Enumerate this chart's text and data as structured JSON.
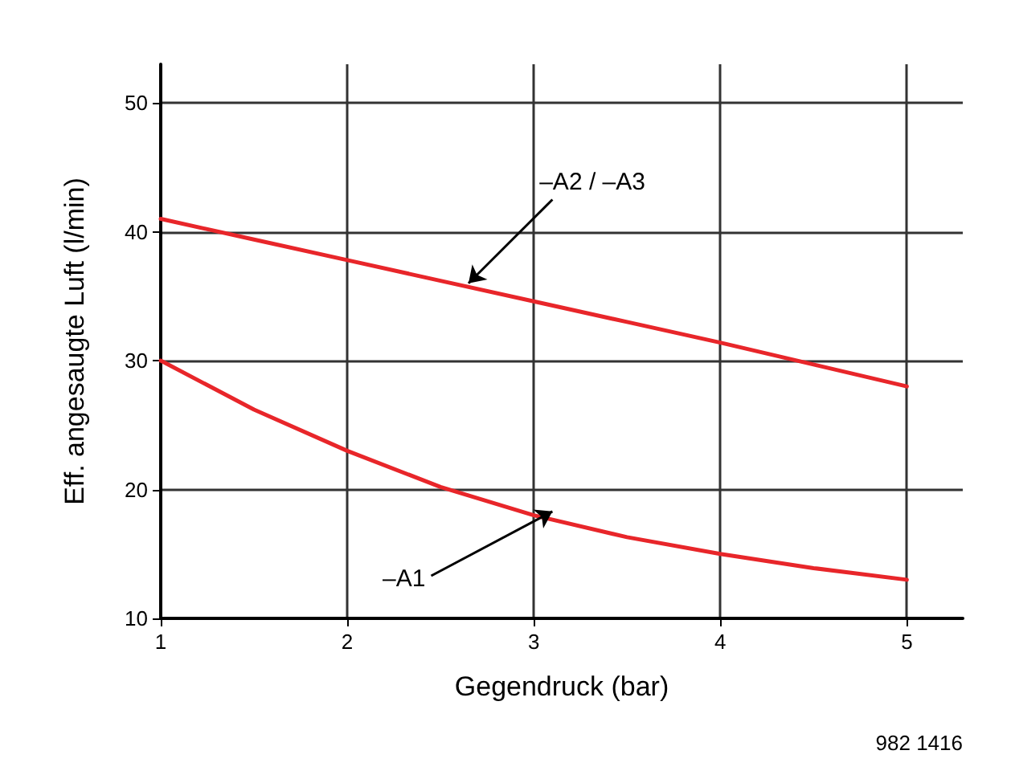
{
  "chart_data": {
    "type": "line",
    "xlabel": "Gegendruck (bar)",
    "ylabel": "Eff. angesaugte Luft (l/min)",
    "x": [
      1,
      1.5,
      2,
      2.5,
      3,
      3.5,
      4,
      4.5,
      5
    ],
    "series": [
      {
        "color": "#e8262a",
        "values": [
          41,
          39.4,
          37.8,
          36.2,
          34.6,
          33,
          31.4,
          29.7,
          28
        ]
      },
      {
        "color": "#e8262a",
        "values": [
          30,
          26.2,
          23,
          20.2,
          18,
          16.3,
          15,
          13.9,
          13
        ]
      }
    ],
    "xlim": [
      1,
      5.3
    ],
    "xticks": [
      1,
      2,
      3,
      4,
      5
    ],
    "ylim": [
      10,
      53
    ],
    "yticks": [
      10,
      20,
      30,
      40,
      50
    ],
    "grid": true,
    "marker": "none",
    "line_style": "solid",
    "annotations": [
      {
        "text": "–A2 / –A3",
        "x": 2.65,
        "y": 36
      },
      {
        "text": "–A1",
        "x": 3.1,
        "y": 18.3
      },
      "982 1416"
    ]
  }
}
